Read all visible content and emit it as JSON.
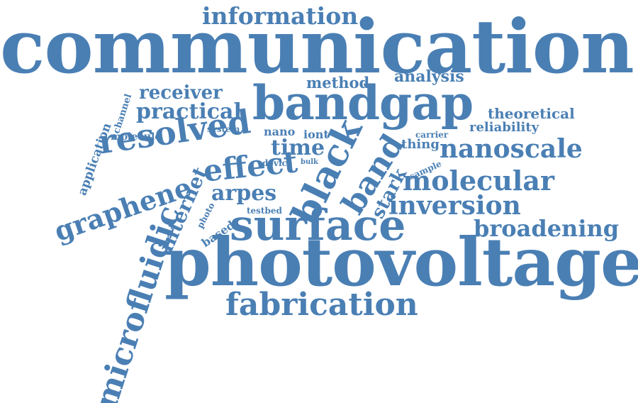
{
  "cloud": {
    "color": "#4a7fb4",
    "words": [
      {
        "id": "communication",
        "text": "communication"
      },
      {
        "id": "photovoltage",
        "text": "photovoltage"
      },
      {
        "id": "bandgap",
        "text": "bandgap"
      },
      {
        "id": "surface",
        "text": "surface"
      },
      {
        "id": "black",
        "text": "black"
      },
      {
        "id": "fabrication",
        "text": "fabrication"
      },
      {
        "id": "microfluidic",
        "text": "microfluidic"
      },
      {
        "id": "resolved",
        "text": "resolved"
      },
      {
        "id": "graphene",
        "text": "graphene"
      },
      {
        "id": "information",
        "text": "information"
      },
      {
        "id": "band",
        "text": "band"
      },
      {
        "id": "effect",
        "text": "effect"
      },
      {
        "id": "molecular",
        "text": "molecular"
      },
      {
        "id": "nanoscale",
        "text": "nanoscale"
      },
      {
        "id": "inversion",
        "text": "inversion"
      },
      {
        "id": "broadening",
        "text": "broadening"
      },
      {
        "id": "arpes",
        "text": "arpes"
      },
      {
        "id": "time",
        "text": "time"
      },
      {
        "id": "practical",
        "text": "practical"
      },
      {
        "id": "receiver",
        "text": "receiver"
      },
      {
        "id": "internet",
        "text": "internet"
      },
      {
        "id": "stark",
        "text": "stark"
      },
      {
        "id": "analysis",
        "text": "analysis"
      },
      {
        "id": "method",
        "text": "method"
      },
      {
        "id": "theoretical",
        "text": "theoretical"
      },
      {
        "id": "reliability",
        "text": "reliability"
      },
      {
        "id": "application",
        "text": "application"
      },
      {
        "id": "channel",
        "text": "channel"
      },
      {
        "id": "molecule",
        "text": "molecule"
      },
      {
        "id": "system",
        "text": "system"
      },
      {
        "id": "nano",
        "text": "nano"
      },
      {
        "id": "iont",
        "text": "iont"
      },
      {
        "id": "carrier",
        "text": "carrier"
      },
      {
        "id": "thing",
        "text": "thing"
      },
      {
        "id": "sample",
        "text": "sample"
      },
      {
        "id": "device",
        "text": "device"
      },
      {
        "id": "bulk",
        "text": "bulk"
      },
      {
        "id": "photo",
        "text": "photo"
      },
      {
        "id": "based",
        "text": "based"
      },
      {
        "id": "testbed",
        "text": "testbed"
      }
    ]
  }
}
